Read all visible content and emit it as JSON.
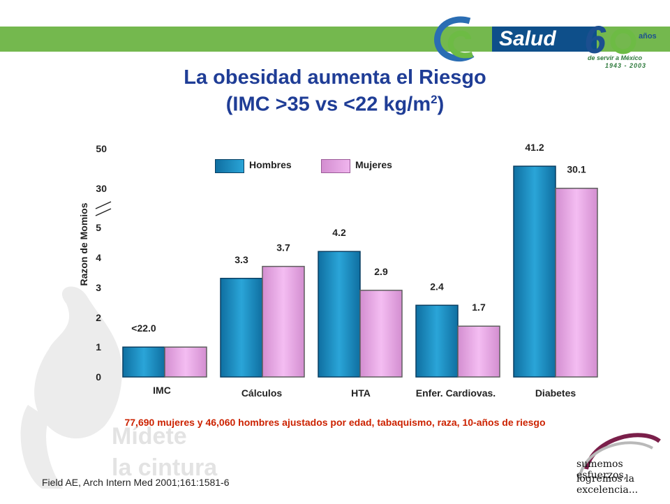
{
  "branding": {
    "salud": "Salud",
    "anos": "años",
    "servir": "de servir a México",
    "years": "1943 - 2003",
    "watermark_line1": "Mídete",
    "watermark_line2": "la cintura",
    "slogan_line1": "sumemos esfuerzos,",
    "slogan_line2": "logremos la excelencia..."
  },
  "title": {
    "line1": "La obesidad aumenta el Riesgo",
    "line2_pre": "(IMC >35 vs <22 kg/m",
    "line2_sup": "2",
    "line2_post": ")"
  },
  "footnote": "77,690 mujeres y  46,060 hombres ajustados por edad, tabaquismo, raza, 10-años de riesgo",
  "citation": "Field AE, Arch Intern Med 2001;161:1581-6",
  "colors": {
    "hombres": "#1b8fc4",
    "mujeres": "#e8a3e3",
    "title": "#1f3d96",
    "footnote": "#cc2200",
    "topbar": "#74b84e"
  },
  "chart_data": {
    "type": "bar",
    "ylabel": "Razon de Momios",
    "y_ticks": [
      "0",
      "1",
      "2",
      "3",
      "4",
      "5",
      "30",
      "50"
    ],
    "y_axis_note": "broken axis between 5 and 30",
    "categories": [
      "IMC",
      "Cálculos",
      "HTA",
      "Enfer. Cardiovas.",
      "Diabetes"
    ],
    "series": [
      {
        "name": "Hombres",
        "values": [
          1.0,
          3.3,
          4.2,
          2.4,
          41.2
        ],
        "labels": [
          "<22.0",
          "3.3",
          "4.2",
          "2.4",
          "41.2"
        ]
      },
      {
        "name": "Mujeres",
        "values": [
          1.0,
          3.7,
          2.9,
          1.7,
          30.1
        ],
        "labels": [
          "",
          "3.7",
          "2.9",
          "1.7",
          "30.1"
        ]
      }
    ],
    "legend": "top-center"
  }
}
